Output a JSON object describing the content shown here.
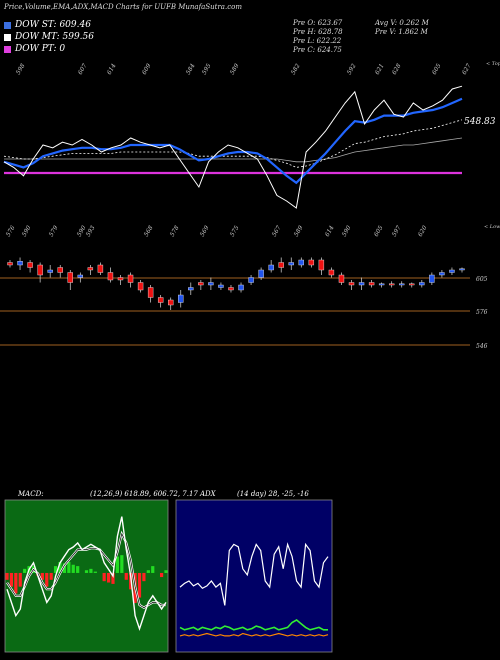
{
  "header": {
    "title": "Price,Volume,EMA,ADX,MACD Charts for UUFB MunafaSutra.com"
  },
  "legend": [
    {
      "label": "DOW ST: 609.46",
      "color": "#3b6fe0"
    },
    {
      "label": "DOW MT: 599.56",
      "color": "#ffffff"
    },
    {
      "label": "DOW PT: 0",
      "color": "#e040e0"
    }
  ],
  "ohlc": {
    "open": "Pre O: 623.67",
    "high": "Pre H: 628.78",
    "low": "Pre L: 622.22",
    "close": "Pre C: 624.75",
    "avg_vol": "Avg V: 0.262 M",
    "pre_vol": "Pre V: 1.862 M"
  },
  "ema_panel": {
    "top_labels": [
      "598",
      "607",
      "614",
      "609",
      "584",
      "595",
      "589",
      "582",
      "592",
      "621",
      "628",
      "605",
      "627"
    ],
    "corner_label": "< Tops",
    "bottom_labels": [
      "576",
      "590",
      "579",
      "590",
      "593",
      "568",
      "578",
      "569",
      "575",
      "567",
      "589",
      "614",
      "590",
      "605",
      "597",
      "620"
    ],
    "bottom_corner_label": "< Lows",
    "last_value": "548.83"
  },
  "price_panel": {
    "levels": [
      "605",
      "576",
      "546"
    ]
  },
  "indicators": {
    "macd_label": "MACD:",
    "macd_params": "(12,26,9) 618.89, 606.72, 7.17",
    "adx_label": "ADX",
    "adx_params": "(14 day) 28, -25, -16"
  },
  "colors": {
    "up": "#2255ee",
    "down": "#ee1111",
    "level": "#a06020",
    "ema_fast": "#2266ff",
    "ema_slow": "#ffffff",
    "pt_line": "#dd33dd",
    "macd_bg": "#0a6a14",
    "adx_bg": "#000066",
    "hist_pos": "#22dd22",
    "hist_neg": "#ff2222"
  },
  "chart_data": [
    {
      "type": "line",
      "name": "ema-panel",
      "series": [
        {
          "values": [
            0.62,
            0.66,
            0.72,
            0.6,
            0.5,
            0.52,
            0.48,
            0.5,
            0.46,
            0.5,
            0.55,
            0.52,
            0.5,
            0.45,
            0.48,
            0.5,
            0.52,
            0.5,
            0.6,
            0.7,
            0.8,
            0.62,
            0.55,
            0.5,
            0.52,
            0.56,
            0.6,
            0.72,
            0.86,
            0.9,
            0.95,
            0.55,
            0.48,
            0.4,
            0.3,
            0.2,
            0.12,
            0.35,
            0.25,
            0.18,
            0.28,
            0.3,
            0.2,
            0.25,
            0.22,
            0.18,
            0.1,
            0.08
          ]
        },
        {
          "values": [
            0.62,
            0.64,
            0.66,
            0.63,
            0.58,
            0.56,
            0.54,
            0.53,
            0.52,
            0.52,
            0.53,
            0.53,
            0.52,
            0.5,
            0.5,
            0.5,
            0.5,
            0.5,
            0.53,
            0.57,
            0.61,
            0.6,
            0.58,
            0.56,
            0.55,
            0.55,
            0.56,
            0.6,
            0.66,
            0.72,
            0.77,
            0.7,
            0.63,
            0.56,
            0.48,
            0.4,
            0.33,
            0.34,
            0.32,
            0.29,
            0.29,
            0.29,
            0.27,
            0.26,
            0.25,
            0.23,
            0.2,
            0.17
          ]
        },
        {
          "values": [
            0.58,
            0.59,
            0.6,
            0.6,
            0.59,
            0.58,
            0.57,
            0.56,
            0.56,
            0.56,
            0.56,
            0.56,
            0.55,
            0.55,
            0.55,
            0.55,
            0.55,
            0.55,
            0.55,
            0.56,
            0.58,
            0.58,
            0.58,
            0.58,
            0.58,
            0.58,
            0.58,
            0.59,
            0.61,
            0.63,
            0.66,
            0.65,
            0.63,
            0.6,
            0.57,
            0.53,
            0.49,
            0.48,
            0.46,
            0.44,
            0.43,
            0.42,
            0.4,
            0.39,
            0.38,
            0.36,
            0.34,
            0.32
          ]
        },
        {
          "values": [
            0.6,
            0.6,
            0.6,
            0.6,
            0.6,
            0.6,
            0.6,
            0.6,
            0.6,
            0.6,
            0.6,
            0.6,
            0.6,
            0.6,
            0.6,
            0.6,
            0.6,
            0.6,
            0.6,
            0.6,
            0.6,
            0.6,
            0.6,
            0.6,
            0.6,
            0.6,
            0.6,
            0.6,
            0.6,
            0.61,
            0.62,
            0.62,
            0.61,
            0.6,
            0.59,
            0.57,
            0.55,
            0.54,
            0.53,
            0.52,
            0.51,
            0.5,
            0.5,
            0.49,
            0.48,
            0.47,
            0.46,
            0.45
          ]
        },
        {
          "values": [
            0.7,
            0.7,
            0.7,
            0.7,
            0.7,
            0.7,
            0.7,
            0.7,
            0.7,
            0.7,
            0.7,
            0.7,
            0.7,
            0.7,
            0.7,
            0.7,
            0.7,
            0.7,
            0.7,
            0.7,
            0.7,
            0.7,
            0.7,
            0.7,
            0.7,
            0.7,
            0.7,
            0.7,
            0.7,
            0.7,
            0.7,
            0.7,
            0.7,
            0.7,
            0.7,
            0.7,
            0.7,
            0.7,
            0.7,
            0.7,
            0.7,
            0.7,
            0.7,
            0.7,
            0.7,
            0.7,
            0.7,
            0.7
          ]
        }
      ]
    },
    {
      "type": "candlestick",
      "name": "price-panel",
      "candles": [
        [
          0.82,
          0.8,
          0.78,
          0.84
        ],
        [
          0.8,
          0.83,
          0.76,
          0.86
        ],
        [
          0.82,
          0.78,
          0.74,
          0.84
        ],
        [
          0.8,
          0.72,
          0.66,
          0.82
        ],
        [
          0.74,
          0.76,
          0.7,
          0.8
        ],
        [
          0.78,
          0.74,
          0.7,
          0.8
        ],
        [
          0.74,
          0.66,
          0.6,
          0.76
        ],
        [
          0.7,
          0.72,
          0.66,
          0.74
        ],
        [
          0.78,
          0.76,
          0.72,
          0.8
        ],
        [
          0.8,
          0.74,
          0.72,
          0.82
        ],
        [
          0.74,
          0.68,
          0.66,
          0.78
        ],
        [
          0.7,
          0.68,
          0.64,
          0.72
        ],
        [
          0.72,
          0.66,
          0.62,
          0.74
        ],
        [
          0.66,
          0.6,
          0.58,
          0.68
        ],
        [
          0.62,
          0.54,
          0.5,
          0.64
        ],
        [
          0.54,
          0.5,
          0.46,
          0.56
        ],
        [
          0.52,
          0.48,
          0.44,
          0.54
        ],
        [
          0.5,
          0.56,
          0.46,
          0.6
        ],
        [
          0.6,
          0.62,
          0.56,
          0.66
        ],
        [
          0.66,
          0.64,
          0.6,
          0.68
        ],
        [
          0.64,
          0.66,
          0.6,
          0.7
        ],
        [
          0.62,
          0.64,
          0.6,
          0.66
        ],
        [
          0.62,
          0.6,
          0.58,
          0.64
        ],
        [
          0.6,
          0.64,
          0.58,
          0.66
        ],
        [
          0.66,
          0.7,
          0.64,
          0.72
        ],
        [
          0.7,
          0.76,
          0.68,
          0.78
        ],
        [
          0.76,
          0.8,
          0.74,
          0.84
        ],
        [
          0.82,
          0.78,
          0.74,
          0.86
        ],
        [
          0.8,
          0.82,
          0.76,
          0.86
        ],
        [
          0.8,
          0.84,
          0.78,
          0.86
        ],
        [
          0.84,
          0.8,
          0.78,
          0.86
        ],
        [
          0.84,
          0.76,
          0.72,
          0.86
        ],
        [
          0.76,
          0.72,
          0.7,
          0.78
        ],
        [
          0.72,
          0.66,
          0.64,
          0.74
        ],
        [
          0.66,
          0.64,
          0.6,
          0.68
        ],
        [
          0.64,
          0.66,
          0.6,
          0.7
        ],
        [
          0.66,
          0.64,
          0.62,
          0.68
        ],
        [
          0.64,
          0.65,
          0.62,
          0.66
        ],
        [
          0.65,
          0.64,
          0.62,
          0.67
        ],
        [
          0.64,
          0.65,
          0.62,
          0.67
        ],
        [
          0.65,
          0.64,
          0.62,
          0.66
        ],
        [
          0.64,
          0.66,
          0.62,
          0.68
        ],
        [
          0.66,
          0.72,
          0.64,
          0.74
        ],
        [
          0.72,
          0.74,
          0.7,
          0.76
        ],
        [
          0.74,
          0.76,
          0.72,
          0.78
        ],
        [
          0.76,
          0.77,
          0.74,
          0.78
        ]
      ]
    },
    {
      "type": "line",
      "name": "macd-panel",
      "series": [
        {
          "values": [
            0.4,
            0.3,
            0.2,
            0.25,
            0.45,
            0.55,
            0.6,
            0.5,
            0.4,
            0.3,
            0.35,
            0.5,
            0.6,
            0.65,
            0.7,
            0.72,
            0.75,
            0.7,
            0.72,
            0.74,
            0.72,
            0.7,
            0.6,
            0.55,
            0.5,
            0.8,
            0.95,
            0.7,
            0.5,
            0.2,
            0.1,
            0.2,
            0.3,
            0.35,
            0.3,
            0.25,
            0.3
          ]
        },
        {
          "values": [
            0.45,
            0.4,
            0.35,
            0.35,
            0.42,
            0.5,
            0.55,
            0.52,
            0.45,
            0.4,
            0.4,
            0.45,
            0.52,
            0.58,
            0.62,
            0.66,
            0.7,
            0.7,
            0.7,
            0.71,
            0.71,
            0.7,
            0.66,
            0.62,
            0.58,
            0.68,
            0.82,
            0.75,
            0.62,
            0.42,
            0.28,
            0.26,
            0.28,
            0.3,
            0.3,
            0.28,
            0.28
          ]
        }
      ],
      "histogram": [
        -0.05,
        -0.1,
        -0.15,
        -0.1,
        0.03,
        0.05,
        0.05,
        -0.02,
        -0.05,
        -0.1,
        -0.05,
        0.05,
        0.08,
        0.07,
        0.08,
        0.06,
        0.05,
        0.0,
        0.02,
        0.03,
        0.01,
        0.0,
        -0.06,
        -0.07,
        -0.08,
        0.12,
        0.13,
        -0.05,
        -0.12,
        -0.22,
        -0.18,
        -0.06,
        0.02,
        0.05,
        0.0,
        -0.03,
        0.02
      ]
    },
    {
      "type": "line",
      "name": "adx-panel",
      "series": [
        {
          "values": [
            0.45,
            0.48,
            0.5,
            0.46,
            0.48,
            0.44,
            0.46,
            0.5,
            0.45,
            0.48,
            0.3,
            0.75,
            0.8,
            0.78,
            0.6,
            0.55,
            0.7,
            0.8,
            0.75,
            0.5,
            0.45,
            0.72,
            0.78,
            0.6,
            0.8,
            0.7,
            0.5,
            0.45,
            0.8,
            0.75,
            0.5,
            0.45,
            0.65,
            0.7
          ]
        },
        {
          "values": [
            0.12,
            0.1,
            0.11,
            0.12,
            0.1,
            0.12,
            0.11,
            0.1,
            0.12,
            0.11,
            0.13,
            0.12,
            0.1,
            0.11,
            0.12,
            0.1,
            0.11,
            0.13,
            0.12,
            0.1,
            0.11,
            0.12,
            0.1,
            0.11,
            0.12,
            0.16,
            0.18,
            0.15,
            0.12,
            0.1,
            0.11,
            0.12,
            0.1,
            0.1
          ]
        },
        {
          "values": [
            0.05,
            0.06,
            0.05,
            0.06,
            0.05,
            0.06,
            0.07,
            0.06,
            0.05,
            0.06,
            0.05,
            0.05,
            0.06,
            0.05,
            0.07,
            0.06,
            0.05,
            0.06,
            0.05,
            0.06,
            0.05,
            0.06,
            0.07,
            0.06,
            0.05,
            0.06,
            0.05,
            0.06,
            0.05,
            0.06,
            0.05,
            0.06,
            0.05,
            0.06
          ]
        }
      ]
    }
  ]
}
